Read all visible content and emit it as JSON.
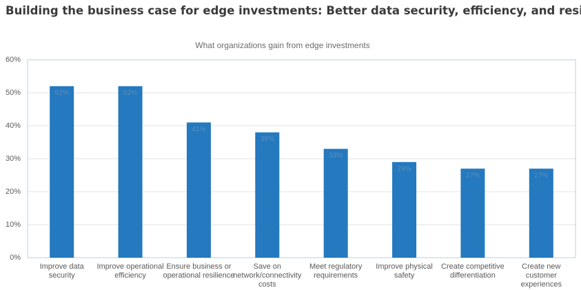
{
  "chart_data": {
    "type": "bar",
    "title": "Building the business case for edge investments: Better data security, efficiency, and resilience",
    "subtitle": "What organizations gain from edge investments",
    "categories": [
      "Improve data security",
      "Improve operational efficiency",
      "Ensure business or operational resilience",
      "Save on network/connectivity costs",
      "Meet regulatory requirements",
      "Improve physical safety",
      "Create competitive differentiation",
      "Create new customer experiences"
    ],
    "values": [
      52,
      52,
      41,
      38,
      33,
      29,
      27,
      27
    ],
    "value_labels": [
      "52%",
      "52%",
      "41%",
      "38%",
      "33%",
      "29%",
      "27%",
      "27%"
    ],
    "color": "#2479bf",
    "ylim": [
      0,
      60
    ],
    "yticks": [
      {
        "value": 0,
        "label": "0%"
      },
      {
        "value": 10,
        "label": "10%"
      },
      {
        "value": 20,
        "label": "20%"
      },
      {
        "value": 30,
        "label": "30%"
      },
      {
        "value": 40,
        "label": "40%"
      },
      {
        "value": 50,
        "label": "50%"
      },
      {
        "value": 60,
        "label": "60%"
      }
    ],
    "grid": true
  }
}
